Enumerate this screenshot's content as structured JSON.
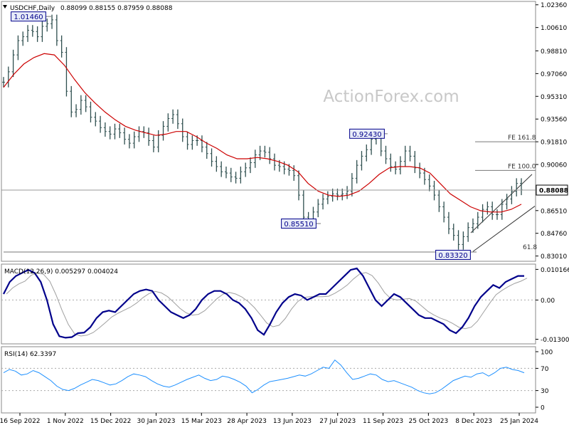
{
  "header": {
    "symbol": "USDCHF,Daily",
    "ohlc": "0.88099 0.88155 0.87959 0.88088"
  },
  "watermark": "ActionForex.com",
  "colors": {
    "price_bars": "#2f4f4f",
    "ma_line": "#cc0000",
    "macd_line": "#00008b",
    "signal_line": "#a0a0a0",
    "rsi_line": "#1e90ff",
    "level_line": "#777777",
    "channel_line": "#333333",
    "label_fill": "#e8ecf8",
    "label_border": "#00008b",
    "label_text": "#00008b"
  },
  "chart_data": {
    "type": "candlestick",
    "instrument": "USDCHF",
    "timeframe": "Daily",
    "last_price": "0.88088",
    "price_axis": {
      "range": [
        0.8266,
        1.0251
      ],
      "ticks": [
        {
          "value": 1.0236,
          "label": "1.02360"
        },
        {
          "value": 1.0061,
          "label": "1.00610"
        },
        {
          "value": 0.9881,
          "label": "0.98810"
        },
        {
          "value": 0.9706,
          "label": "0.97060"
        },
        {
          "value": 0.9531,
          "label": "0.95310"
        },
        {
          "value": 0.9356,
          "label": "0.93560"
        },
        {
          "value": 0.9181,
          "label": "0.91810"
        },
        {
          "value": 0.9006,
          "label": "0.90060"
        },
        {
          "value": 0.8651,
          "label": "0.86510"
        },
        {
          "value": 0.8476,
          "label": "0.84760"
        },
        {
          "value": 0.8301,
          "label": "0.83010"
        }
      ]
    },
    "x_axis_labels": [
      "16 Sep 2022",
      "1 Nov 2022",
      "15 Dec 2022",
      "30 Jan 2023",
      "15 Mar 2023",
      "28 Apr 2023",
      "13 Jun 2023",
      "27 Jul 2023",
      "11 Sep 2023",
      "25 Oct 2023",
      "8 Dec 2023",
      "25 Jan 2024"
    ],
    "price_series_close": [
      0.964,
      0.972,
      0.985,
      0.996,
      0.999,
      1.004,
      1.003,
      0.999,
      1.007,
      1.009,
      1.012,
      0.996,
      0.987,
      0.957,
      0.941,
      0.943,
      0.95,
      0.945,
      0.937,
      0.934,
      0.929,
      0.926,
      0.924,
      0.928,
      0.925,
      0.92,
      0.917,
      0.922,
      0.926,
      0.925,
      0.919,
      0.914,
      0.923,
      0.93,
      0.936,
      0.939,
      0.932,
      0.922,
      0.916,
      0.919,
      0.919,
      0.914,
      0.909,
      0.903,
      0.899,
      0.895,
      0.894,
      0.891,
      0.89,
      0.895,
      0.898,
      0.902,
      0.908,
      0.911,
      0.91,
      0.905,
      0.9,
      0.899,
      0.897,
      0.896,
      0.892,
      0.877,
      0.86,
      0.858,
      0.864,
      0.87,
      0.874,
      0.876,
      0.878,
      0.877,
      0.878,
      0.88,
      0.89,
      0.9,
      0.907,
      0.912,
      0.92,
      0.921,
      0.911,
      0.905,
      0.899,
      0.897,
      0.903,
      0.911,
      0.907,
      0.898,
      0.894,
      0.889,
      0.884,
      0.877,
      0.868,
      0.86,
      0.851,
      0.846,
      0.839,
      0.845,
      0.852,
      0.855,
      0.86,
      0.866,
      0.868,
      0.862,
      0.862,
      0.87,
      0.874,
      0.88,
      0.886,
      0.881
    ],
    "moving_average": [
      0.96,
      0.97,
      0.978,
      0.983,
      0.986,
      0.985,
      0.977,
      0.966,
      0.956,
      0.948,
      0.941,
      0.935,
      0.93,
      0.927,
      0.925,
      0.923,
      0.924,
      0.926,
      0.926,
      0.922,
      0.917,
      0.913,
      0.908,
      0.905,
      0.905,
      0.906,
      0.905,
      0.903,
      0.9,
      0.895,
      0.886,
      0.88,
      0.877,
      0.876,
      0.877,
      0.88,
      0.886,
      0.893,
      0.898,
      0.899,
      0.899,
      0.898,
      0.894,
      0.886,
      0.878,
      0.873,
      0.868,
      0.865,
      0.864,
      0.864,
      0.866,
      0.87
    ],
    "levels": [
      {
        "label": "1.01460",
        "value": 1.0146,
        "type": "high"
      },
      {
        "label": "0.85510",
        "value": 0.8551,
        "type": "low"
      },
      {
        "label": "0.92430",
        "value": 0.9243,
        "type": "high"
      },
      {
        "label": "0.83320",
        "value": 0.8332,
        "type": "low"
      },
      {
        "label": "FE 161.8",
        "value": 0.9181,
        "type": "projection"
      },
      {
        "label": "FE 100.0",
        "value": 0.896,
        "type": "projection"
      },
      {
        "label": "61.8",
        "value": 0.8336,
        "type": "retracement"
      }
    ],
    "macd": {
      "title": "MACD(12,26,9) 0.005297 0.004024",
      "params": "12,26,9",
      "main": 0.005297,
      "signal": 0.004024,
      "axis_ticks": [
        {
          "value": 0.010166,
          "label": "0.010166"
        },
        {
          "value": 0.0,
          "label": "0.00"
        },
        {
          "value": -0.013006,
          "label": "-0.013006"
        }
      ],
      "range": [
        -0.0143,
        0.0112
      ],
      "series": [
        0.002,
        0.006,
        0.008,
        0.009,
        0.01,
        0.009,
        0.006,
        0.0,
        -0.008,
        -0.012,
        -0.0125,
        -0.0123,
        -0.011,
        -0.0108,
        -0.009,
        -0.006,
        -0.004,
        -0.0035,
        -0.004,
        -0.002,
        0.0,
        0.002,
        0.003,
        0.0035,
        0.003,
        0.0,
        -0.002,
        -0.004,
        -0.005,
        -0.006,
        -0.005,
        -0.003,
        0.0,
        0.002,
        0.003,
        0.003,
        0.002,
        0.0,
        -0.001,
        -0.003,
        -0.006,
        -0.01,
        -0.0115,
        -0.008,
        -0.004,
        -0.001,
        0.001,
        0.002,
        0.0015,
        0.0,
        0.001,
        0.002,
        0.002,
        0.004,
        0.006,
        0.008,
        0.01,
        0.0105,
        0.008,
        0.004,
        0.0,
        -0.002,
        0.0,
        0.002,
        0.001,
        -0.001,
        -0.003,
        -0.005,
        -0.006,
        -0.006,
        -0.007,
        -0.008,
        -0.01,
        -0.011,
        -0.009,
        -0.006,
        -0.002,
        0.001,
        0.003,
        0.005,
        0.004,
        0.006,
        0.007,
        0.008,
        0.008
      ]
    },
    "rsi": {
      "title": "RSI(14) 62.3397",
      "period": 14,
      "value": 62.3397,
      "range": [
        0,
        100
      ],
      "axis_ticks": [
        {
          "value": 100,
          "label": "100"
        },
        {
          "value": 70,
          "label": "70"
        },
        {
          "value": 30,
          "label": "30"
        },
        {
          "value": 0,
          "label": "0"
        }
      ],
      "series": [
        62,
        68,
        65,
        58,
        60,
        66,
        62,
        55,
        48,
        38,
        32,
        30,
        34,
        40,
        45,
        50,
        48,
        44,
        40,
        42,
        48,
        55,
        60,
        58,
        55,
        48,
        42,
        38,
        36,
        40,
        45,
        50,
        54,
        58,
        52,
        48,
        50,
        56,
        54,
        50,
        45,
        38,
        26,
        32,
        40,
        46,
        48,
        50,
        52,
        55,
        58,
        56,
        60,
        66,
        72,
        70,
        85,
        76,
        62,
        50,
        52,
        56,
        60,
        58,
        50,
        46,
        48,
        44,
        40,
        36,
        30,
        26,
        24,
        26,
        32,
        40,
        48,
        52,
        56,
        54,
        60,
        62,
        56,
        62,
        70,
        72,
        68,
        66,
        62
      ]
    }
  }
}
